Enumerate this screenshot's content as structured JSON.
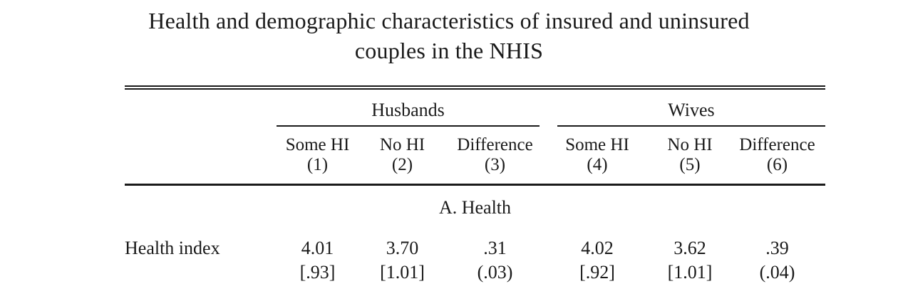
{
  "title": {
    "line1": "Health and demographic characteristics of insured and uninsured",
    "line2": "couples in the NHIS"
  },
  "table": {
    "groups": [
      {
        "label": "Husbands"
      },
      {
        "label": "Wives"
      }
    ],
    "columns": [
      {
        "label": "Some HI",
        "number": "(1)"
      },
      {
        "label": "No HI",
        "number": "(2)"
      },
      {
        "label": "Difference",
        "number": "(3)"
      },
      {
        "label": "Some HI",
        "number": "(4)"
      },
      {
        "label": "No HI",
        "number": "(5)"
      },
      {
        "label": "Difference",
        "number": "(6)"
      }
    ],
    "panel_label": "A. Health",
    "rows": [
      {
        "label": "Health index",
        "values": [
          "4.01",
          "3.70",
          ".31",
          "4.02",
          "3.62",
          ".39"
        ],
        "dispersion": [
          "[.93]",
          "[1.01]",
          "(.03)",
          "[.92]",
          "[1.01]",
          "(.04)"
        ]
      }
    ]
  },
  "colors": {
    "text": "#1a1a1a",
    "rule": "#1a1a1a",
    "background": "#ffffff"
  }
}
